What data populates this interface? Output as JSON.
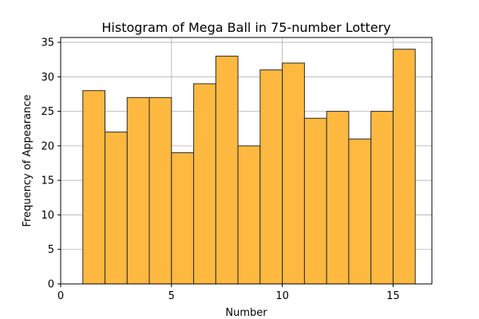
{
  "chart_data": {
    "type": "bar",
    "title": "Histogram of Mega Ball in 75-number Lottery",
    "xlabel": "Number",
    "ylabel": "Frequency of Appearance",
    "bin_edges": [
      1,
      2,
      3,
      4,
      5,
      6,
      7,
      8,
      9,
      10,
      11,
      12,
      13,
      14,
      15,
      16
    ],
    "values": [
      28,
      22,
      27,
      27,
      19,
      29,
      33,
      20,
      31,
      32,
      24,
      25,
      21,
      25,
      34
    ],
    "xlim": [
      0,
      16.75
    ],
    "ylim": [
      0,
      35.7
    ],
    "xticks": [
      0,
      5,
      10,
      15
    ],
    "yticks": [
      0,
      5,
      10,
      15,
      20,
      25,
      30,
      35
    ],
    "grid": true,
    "bar_color": "#ffb940",
    "edge_color": "#2b2b2b"
  }
}
